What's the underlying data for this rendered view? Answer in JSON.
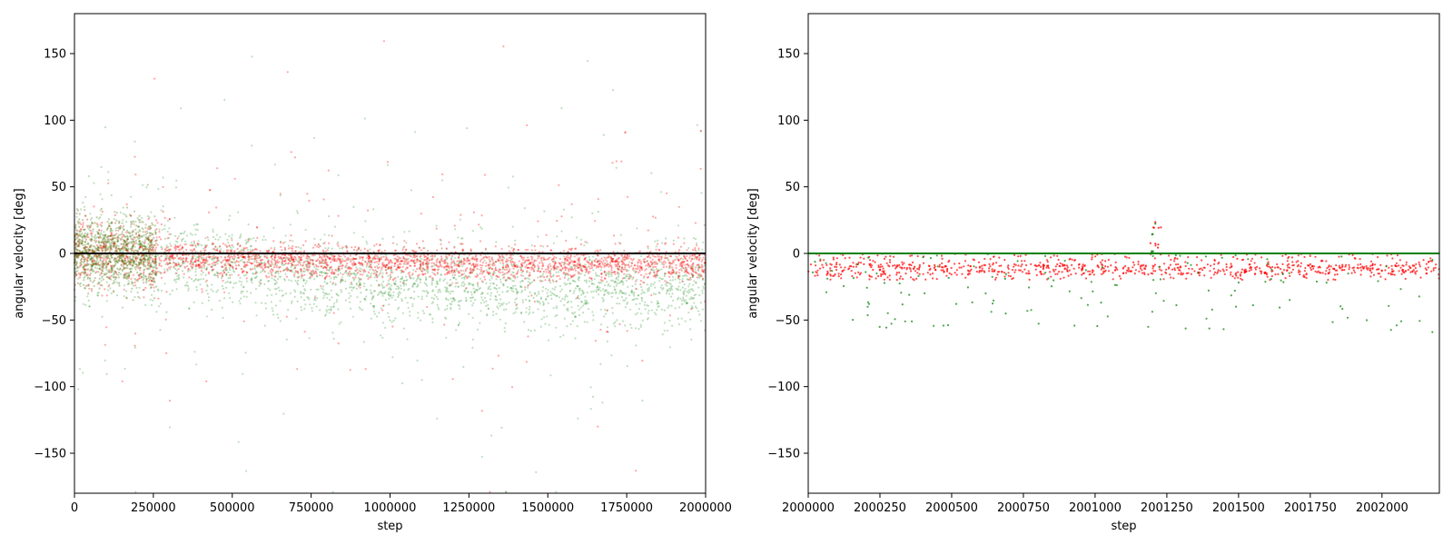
{
  "chart_data": [
    {
      "type": "scatter",
      "title": "",
      "xlabel": "step",
      "ylabel": "angular velocity [deg]",
      "xlim": [
        0,
        2000000
      ],
      "ylim": [
        -180,
        180
      ],
      "xticks": [
        0,
        250000,
        500000,
        750000,
        1000000,
        1250000,
        1500000,
        1750000,
        2000000
      ],
      "xtick_labels": [
        "0",
        "250000",
        "500000",
        "750000",
        "1000000",
        "1250000",
        "1500000",
        "1750000",
        "2000000"
      ],
      "yticks": [
        -150,
        -100,
        -50,
        0,
        50,
        100,
        150
      ],
      "ytick_labels": [
        "−150",
        "−100",
        "−50",
        "0",
        "50",
        "100",
        "150"
      ],
      "grid": false,
      "series": [
        {
          "color": "#008000",
          "description_trend": [
            [
              0,
              0
            ],
            [
              250000,
              -3
            ],
            [
              500000,
              -10
            ],
            [
              750000,
              -18
            ],
            [
              1000000,
              -22
            ],
            [
              1250000,
              -24
            ],
            [
              1500000,
              -25
            ],
            [
              1750000,
              -26
            ],
            [
              2000000,
              -25
            ]
          ]
        },
        {
          "color": "#ff0000",
          "description_trend": [
            [
              0,
              0
            ],
            [
              250000,
              -2
            ],
            [
              500000,
              -4
            ],
            [
              750000,
              -6
            ],
            [
              1000000,
              -7
            ],
            [
              1250000,
              -8
            ],
            [
              1500000,
              -8
            ],
            [
              1750000,
              -8
            ],
            [
              2000000,
              -8
            ]
          ]
        }
      ],
      "reference_line": {
        "y": 0,
        "color": "#000000"
      }
    },
    {
      "type": "scatter",
      "title": "",
      "xlabel": "step",
      "ylabel": "angular velocity [deg]",
      "xlim": [
        2000000,
        2002200
      ],
      "ylim": [
        -180,
        180
      ],
      "xticks": [
        2000000,
        2000250,
        2000500,
        2000750,
        2001000,
        2001250,
        2001500,
        2001750,
        2002000
      ],
      "xtick_labels": [
        "2000000",
        "2000250",
        "2000500",
        "2000750",
        "2001000",
        "2001250",
        "2001500",
        "2001750",
        "2002000"
      ],
      "yticks": [
        -150,
        -100,
        -50,
        0,
        50,
        100,
        150
      ],
      "ytick_labels": [
        "−150",
        "−100",
        "−50",
        "0",
        "50",
        "100",
        "150"
      ],
      "grid": false,
      "series": [
        {
          "color": "#ff0000",
          "typical_range": [
            -20,
            0
          ]
        },
        {
          "color": "#008000",
          "typical_range": [
            -60,
            0
          ]
        }
      ],
      "reference_line": {
        "y": 0,
        "color": "#008000"
      }
    }
  ]
}
